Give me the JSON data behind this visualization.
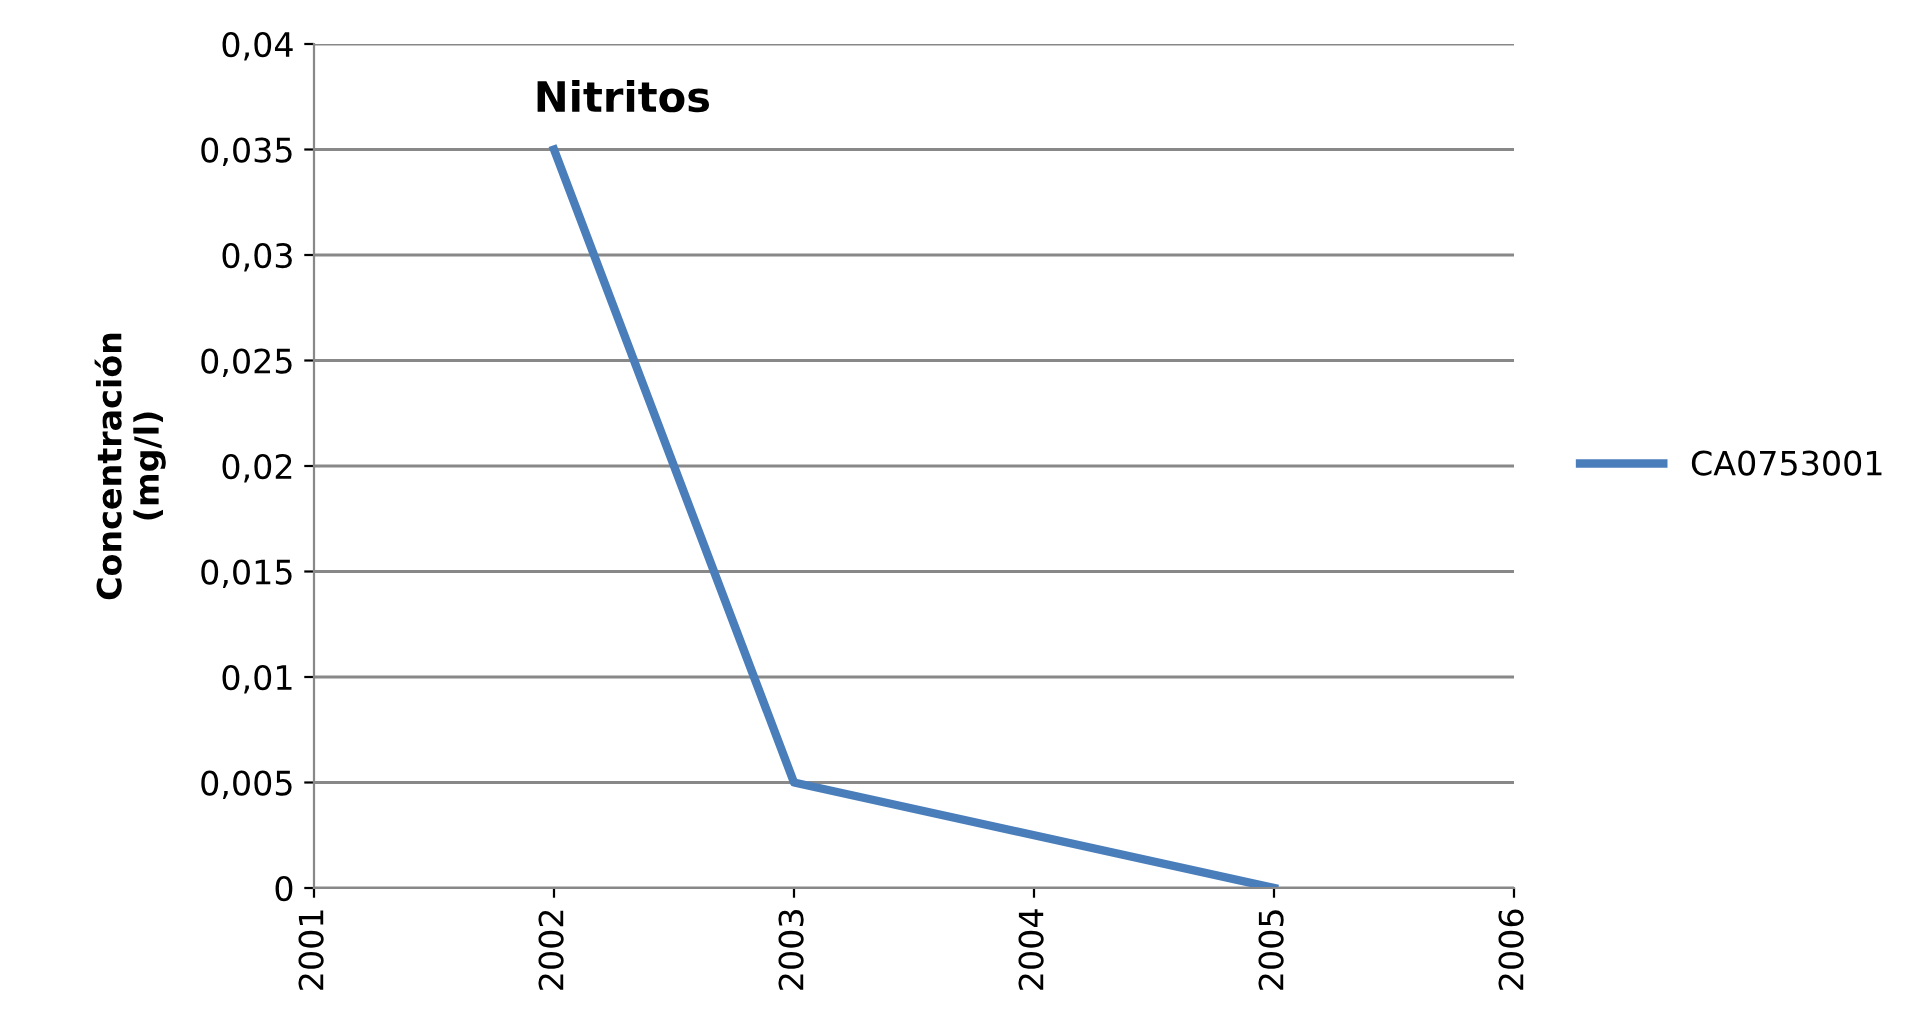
{
  "chart_data": {
    "type": "line",
    "title": "Nitritos",
    "ylabel": "Concentración\n(mg/l)",
    "x": [
      2002,
      2003,
      2005
    ],
    "series": [
      {
        "name": "CA0753001",
        "color": "#4a7ebb",
        "values": [
          0.035,
          0.005,
          0
        ]
      }
    ],
    "xlim": [
      2001,
      2006
    ],
    "xticks": [
      2001,
      2002,
      2003,
      2004,
      2005,
      2006
    ],
    "ylim": [
      0,
      0.04
    ],
    "yticks": [
      {
        "value": 0,
        "label": "0"
      },
      {
        "value": 0.005,
        "label": "0,005"
      },
      {
        "value": 0.01,
        "label": "0,01"
      },
      {
        "value": 0.015,
        "label": "0,015"
      },
      {
        "value": 0.02,
        "label": "0,02"
      },
      {
        "value": 0.025,
        "label": "0,025"
      },
      {
        "value": 0.03,
        "label": "0,03"
      },
      {
        "value": 0.035,
        "label": "0,035"
      },
      {
        "value": 0.04,
        "label": "0,04"
      }
    ],
    "grid": "y",
    "legend": "right",
    "marker": "none",
    "line_style": "solid"
  }
}
